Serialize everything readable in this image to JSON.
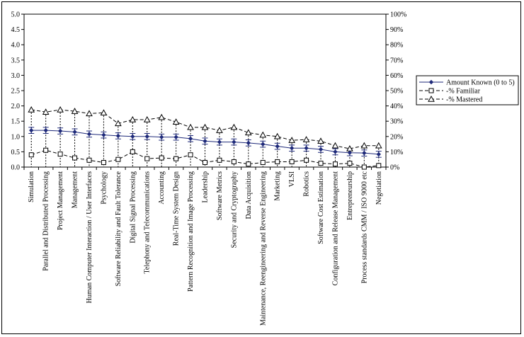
{
  "chart_data": {
    "type": "line",
    "title": "",
    "xlabel": "",
    "ylabel": "",
    "ylim_left": [
      0,
      5
    ],
    "ylim_right": [
      0,
      100
    ],
    "y_ticks_left": [
      "0.0",
      "0.5",
      "1.0",
      "1.5",
      "2.0",
      "2.5",
      "3.0",
      "3.5",
      "4.0",
      "4.5",
      "5.0"
    ],
    "y_ticks_right": [
      "0%",
      "10%",
      "20%",
      "30%",
      "40%",
      "50%",
      "60%",
      "70%",
      "80%",
      "90%",
      "100%"
    ],
    "legend_position": "right",
    "categories": [
      "Simulation",
      "Parallel and Distributed Processing",
      "Project Management",
      "Management",
      "Human Computer Interaction / User Interfaces",
      "Psychology",
      "Software Reliability and Fault Tolerance",
      "Digital Signal Processing",
      "Telephony and Telecommunications",
      "Accounting",
      "Real-Time System Design",
      "Pattern Recognition and Image Processing",
      "Leadership",
      "Software Metrics",
      "Security and Cryptography",
      "Data Acquisition",
      "Maintenance, Reengineering and Reverse Engineering",
      "Marketing",
      "VLSI",
      "Robotics",
      "Software Cost Estimation",
      "Configuration and Release Management",
      "Entrepreneurship",
      "Process standards CMM / ISO 9000 etc",
      "Negotiation"
    ],
    "series": [
      {
        "name": "Amount Known (0 to 5)",
        "axis": "left",
        "marker": "diamond",
        "color": "#1f2a7a",
        "values": [
          1.2,
          1.2,
          1.18,
          1.15,
          1.08,
          1.05,
          1.02,
          1.0,
          1.0,
          0.98,
          0.98,
          0.93,
          0.85,
          0.82,
          0.82,
          0.79,
          0.75,
          0.68,
          0.62,
          0.62,
          0.58,
          0.5,
          0.47,
          0.46,
          0.42
        ],
        "error": [
          0.1,
          0.1,
          0.1,
          0.1,
          0.1,
          0.1,
          0.1,
          0.1,
          0.1,
          0.1,
          0.1,
          0.1,
          0.1,
          0.1,
          0.1,
          0.1,
          0.1,
          0.1,
          0.1,
          0.1,
          0.1,
          0.1,
          0.1,
          0.1,
          0.1
        ]
      },
      {
        "name": "-% Familiar",
        "axis": "right",
        "marker": "square",
        "color": "#000000",
        "values": [
          8,
          11,
          8.5,
          6,
          4.5,
          3,
          5,
          10,
          5.5,
          6,
          5.5,
          8,
          3,
          4.5,
          3.5,
          2,
          3,
          3.5,
          3.5,
          4.5,
          2.5,
          2,
          2.5,
          0,
          1
        ]
      },
      {
        "name": "-% Mastered",
        "axis": "right",
        "marker": "triangle",
        "color": "#000000",
        "values": [
          37.5,
          36,
          37.5,
          36.5,
          35,
          35.5,
          28.5,
          31,
          31,
          32.5,
          29.5,
          26,
          26,
          24,
          26,
          22.5,
          21,
          20,
          17.5,
          18,
          17,
          14,
          12,
          14,
          14
        ]
      }
    ]
  }
}
